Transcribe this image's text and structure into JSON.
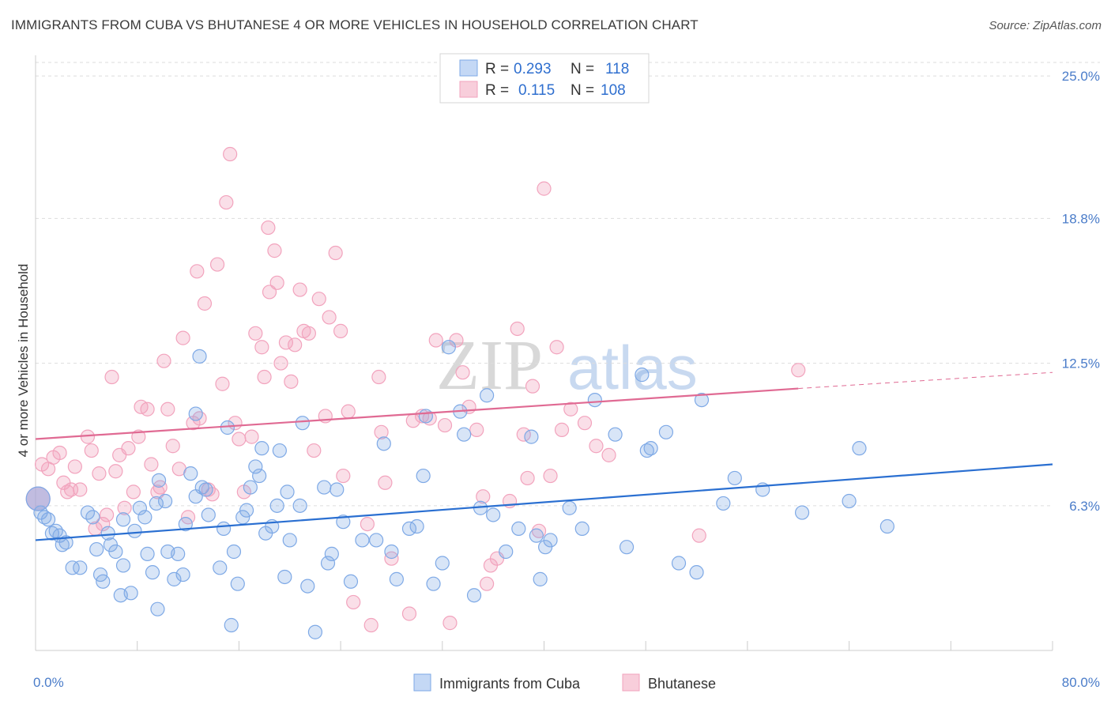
{
  "title": "IMMIGRANTS FROM CUBA VS BHUTANESE 4 OR MORE VEHICLES IN HOUSEHOLD CORRELATION CHART",
  "source": "Source: ZipAtlas.com",
  "colors": {
    "cuba": "#7ea9e6",
    "cuba_line": "#2a6fd1",
    "bhutanese": "#f2a3bd",
    "bhutanese_line": "#e06a93",
    "tick_text": "#4a7cc9"
  },
  "legend": {
    "rows": [
      {
        "r_label": "R =",
        "r_value": "0.293",
        "n_label": "N =",
        "n_value": "118"
      },
      {
        "r_label": "R =",
        "r_value": "0.115",
        "n_label": "N =",
        "n_value": "108"
      }
    ]
  },
  "bottom_legend": [
    "Immigrants from Cuba",
    "Bhutanese"
  ],
  "watermark": {
    "zip": "ZIP",
    "atlas": "atlas"
  },
  "chart_data": {
    "type": "scatter",
    "title": "IMMIGRANTS FROM CUBA VS BHUTANESE 4 OR MORE VEHICLES IN HOUSEHOLD CORRELATION CHART",
    "xlabel": "",
    "ylabel": "4 or more Vehicles in Household",
    "xlim": [
      0,
      80
    ],
    "ylim": [
      0,
      25.9
    ],
    "x_tick_labels": [
      "0.0%",
      "80.0%"
    ],
    "y_ticks": [
      6.3,
      12.5,
      18.8,
      25.0
    ],
    "y_tick_labels": [
      "6.3%",
      "12.5%",
      "18.8%",
      "25.0%"
    ],
    "grid": "horizontal dashed",
    "legend_position": "top-center",
    "series": [
      {
        "name": "Immigrants from Cuba",
        "r": 0.293,
        "n": 118,
        "trend": {
          "x": [
            0,
            80
          ],
          "y": [
            4.8,
            8.1
          ]
        },
        "points": [
          [
            0.2,
            6.6
          ],
          [
            0.4,
            6.0
          ],
          [
            0.7,
            5.8
          ],
          [
            1.0,
            5.7
          ],
          [
            1.3,
            5.1
          ],
          [
            1.6,
            5.2
          ],
          [
            1.9,
            5.0
          ],
          [
            2.1,
            4.6
          ],
          [
            2.4,
            4.7
          ],
          [
            2.9,
            3.6
          ],
          [
            3.5,
            3.6
          ],
          [
            4.1,
            6.0
          ],
          [
            4.5,
            5.8
          ],
          [
            4.8,
            4.4
          ],
          [
            5.1,
            3.3
          ],
          [
            5.3,
            3.0
          ],
          [
            5.7,
            5.1
          ],
          [
            5.9,
            4.6
          ],
          [
            6.3,
            4.3
          ],
          [
            6.7,
            2.4
          ],
          [
            6.9,
            3.7
          ],
          [
            7.5,
            2.5
          ],
          [
            7.8,
            5.2
          ],
          [
            8.2,
            6.2
          ],
          [
            8.6,
            5.8
          ],
          [
            8.8,
            4.2
          ],
          [
            9.2,
            3.4
          ],
          [
            9.5,
            6.4
          ],
          [
            9.7,
            7.4
          ],
          [
            10.2,
            6.5
          ],
          [
            10.4,
            4.3
          ],
          [
            10.9,
            3.1
          ],
          [
            11.2,
            4.2
          ],
          [
            11.6,
            3.3
          ],
          [
            11.8,
            5.5
          ],
          [
            12.2,
            7.7
          ],
          [
            12.6,
            10.3
          ],
          [
            12.9,
            12.8
          ],
          [
            13.1,
            7.1
          ],
          [
            13.4,
            7.0
          ],
          [
            13.6,
            5.9
          ],
          [
            14.5,
            3.6
          ],
          [
            14.8,
            5.3
          ],
          [
            15.1,
            9.7
          ],
          [
            15.6,
            4.3
          ],
          [
            15.4,
            1.1
          ],
          [
            15.9,
            2.9
          ],
          [
            16.3,
            5.8
          ],
          [
            16.6,
            6.1
          ],
          [
            16.9,
            7.1
          ],
          [
            17.3,
            8.0
          ],
          [
            17.6,
            7.6
          ],
          [
            17.8,
            8.8
          ],
          [
            18.1,
            5.1
          ],
          [
            18.6,
            5.4
          ],
          [
            19.0,
            6.3
          ],
          [
            19.2,
            8.7
          ],
          [
            19.6,
            3.2
          ],
          [
            19.8,
            6.9
          ],
          [
            20.0,
            4.8
          ],
          [
            20.8,
            6.3
          ],
          [
            21.4,
            2.8
          ],
          [
            22.0,
            0.8
          ],
          [
            22.7,
            7.1
          ],
          [
            23.0,
            3.8
          ],
          [
            23.3,
            4.2
          ],
          [
            23.7,
            7.0
          ],
          [
            24.2,
            5.6
          ],
          [
            24.8,
            3.0
          ],
          [
            25.7,
            4.8
          ],
          [
            26.8,
            4.8
          ],
          [
            27.4,
            9.0
          ],
          [
            28.0,
            4.3
          ],
          [
            28.4,
            3.1
          ],
          [
            29.4,
            5.3
          ],
          [
            30.0,
            5.4
          ],
          [
            30.5,
            7.6
          ],
          [
            30.7,
            10.2
          ],
          [
            31.3,
            2.9
          ],
          [
            32.0,
            3.8
          ],
          [
            32.5,
            13.2
          ],
          [
            33.4,
            10.4
          ],
          [
            33.7,
            9.4
          ],
          [
            34.5,
            2.4
          ],
          [
            35.0,
            6.2
          ],
          [
            35.5,
            11.1
          ],
          [
            36.0,
            5.9
          ],
          [
            37.0,
            4.3
          ],
          [
            38.0,
            5.3
          ],
          [
            39.0,
            9.3
          ],
          [
            39.4,
            5.0
          ],
          [
            39.7,
            3.1
          ],
          [
            40.1,
            4.5
          ],
          [
            40.5,
            4.8
          ],
          [
            42.0,
            6.2
          ],
          [
            43.0,
            5.3
          ],
          [
            44.0,
            10.9
          ],
          [
            45.6,
            9.4
          ],
          [
            46.5,
            4.5
          ],
          [
            47.7,
            12.0
          ],
          [
            48.1,
            8.7
          ],
          [
            48.4,
            8.8
          ],
          [
            49.6,
            9.5
          ],
          [
            50.6,
            3.8
          ],
          [
            52.0,
            3.4
          ],
          [
            52.4,
            10.9
          ],
          [
            54.1,
            6.4
          ],
          [
            55.0,
            7.5
          ],
          [
            57.2,
            7.0
          ],
          [
            60.3,
            6.0
          ],
          [
            64.0,
            6.5
          ],
          [
            64.8,
            8.8
          ],
          [
            67.0,
            5.4
          ],
          [
            21.0,
            9.9
          ],
          [
            12.6,
            6.7
          ],
          [
            9.6,
            1.8
          ],
          [
            6.9,
            5.7
          ]
        ]
      },
      {
        "name": "Bhutanese",
        "r": 0.115,
        "n": 108,
        "trend": {
          "x": [
            0,
            60
          ],
          "y": [
            9.2,
            11.4
          ]
        },
        "trend_dashed": {
          "x": [
            60,
            80
          ],
          "y": [
            11.4,
            12.1
          ]
        },
        "points": [
          [
            0.2,
            6.6
          ],
          [
            0.5,
            8.1
          ],
          [
            1.0,
            7.9
          ],
          [
            1.4,
            8.4
          ],
          [
            1.9,
            8.6
          ],
          [
            2.2,
            7.3
          ],
          [
            2.5,
            6.9
          ],
          [
            2.8,
            7.0
          ],
          [
            3.1,
            8.0
          ],
          [
            3.5,
            7.0
          ],
          [
            4.1,
            9.3
          ],
          [
            4.4,
            8.7
          ],
          [
            4.7,
            5.3
          ],
          [
            5.0,
            7.7
          ],
          [
            5.3,
            5.5
          ],
          [
            5.6,
            5.9
          ],
          [
            6.0,
            11.9
          ],
          [
            6.3,
            7.8
          ],
          [
            6.6,
            8.5
          ],
          [
            7.0,
            6.2
          ],
          [
            7.3,
            8.8
          ],
          [
            7.7,
            6.9
          ],
          [
            8.1,
            9.3
          ],
          [
            8.3,
            10.6
          ],
          [
            8.8,
            10.5
          ],
          [
            9.1,
            8.1
          ],
          [
            9.6,
            6.9
          ],
          [
            9.8,
            7.1
          ],
          [
            10.1,
            12.6
          ],
          [
            10.4,
            10.5
          ],
          [
            10.8,
            8.9
          ],
          [
            11.3,
            7.9
          ],
          [
            11.6,
            13.6
          ],
          [
            12.0,
            5.8
          ],
          [
            12.4,
            9.9
          ],
          [
            12.7,
            16.5
          ],
          [
            12.9,
            10.1
          ],
          [
            13.3,
            15.1
          ],
          [
            13.6,
            7.0
          ],
          [
            13.9,
            6.8
          ],
          [
            14.3,
            16.8
          ],
          [
            14.7,
            11.6
          ],
          [
            15.0,
            19.5
          ],
          [
            15.3,
            21.6
          ],
          [
            15.7,
            9.9
          ],
          [
            16.0,
            9.2
          ],
          [
            16.4,
            6.9
          ],
          [
            17.0,
            9.3
          ],
          [
            17.3,
            13.8
          ],
          [
            17.8,
            13.2
          ],
          [
            18.0,
            11.9
          ],
          [
            18.4,
            15.6
          ],
          [
            18.8,
            17.4
          ],
          [
            19.0,
            16.0
          ],
          [
            19.3,
            12.5
          ],
          [
            19.7,
            13.4
          ],
          [
            20.1,
            11.7
          ],
          [
            20.4,
            13.3
          ],
          [
            20.8,
            15.7
          ],
          [
            21.1,
            13.9
          ],
          [
            21.5,
            13.8
          ],
          [
            21.9,
            8.7
          ],
          [
            22.3,
            15.3
          ],
          [
            22.8,
            10.2
          ],
          [
            23.1,
            14.5
          ],
          [
            23.6,
            17.3
          ],
          [
            24.0,
            13.9
          ],
          [
            24.2,
            7.6
          ],
          [
            24.6,
            10.4
          ],
          [
            25.0,
            2.1
          ],
          [
            26.1,
            5.5
          ],
          [
            26.4,
            1.1
          ],
          [
            27.0,
            11.9
          ],
          [
            27.2,
            9.5
          ],
          [
            27.5,
            7.3
          ],
          [
            28.0,
            4.0
          ],
          [
            29.4,
            1.6
          ],
          [
            29.7,
            10.0
          ],
          [
            30.4,
            10.2
          ],
          [
            31.0,
            10.1
          ],
          [
            31.5,
            13.5
          ],
          [
            32.2,
            9.8
          ],
          [
            32.6,
            1.2
          ],
          [
            33.1,
            13.5
          ],
          [
            33.6,
            12.1
          ],
          [
            34.1,
            10.6
          ],
          [
            34.7,
            9.6
          ],
          [
            35.2,
            6.7
          ],
          [
            35.5,
            2.9
          ],
          [
            35.8,
            3.7
          ],
          [
            36.3,
            4.0
          ],
          [
            37.3,
            6.5
          ],
          [
            37.9,
            14.0
          ],
          [
            38.4,
            9.4
          ],
          [
            38.7,
            7.5
          ],
          [
            39.1,
            11.5
          ],
          [
            39.6,
            5.2
          ],
          [
            40.0,
            20.1
          ],
          [
            40.5,
            7.6
          ],
          [
            41.0,
            13.2
          ],
          [
            41.4,
            9.6
          ],
          [
            42.1,
            10.5
          ],
          [
            43.2,
            9.9
          ],
          [
            44.1,
            8.9
          ],
          [
            45.1,
            8.5
          ],
          [
            52.2,
            5.0
          ],
          [
            60.0,
            12.2
          ],
          [
            18.3,
            18.4
          ]
        ]
      }
    ]
  }
}
